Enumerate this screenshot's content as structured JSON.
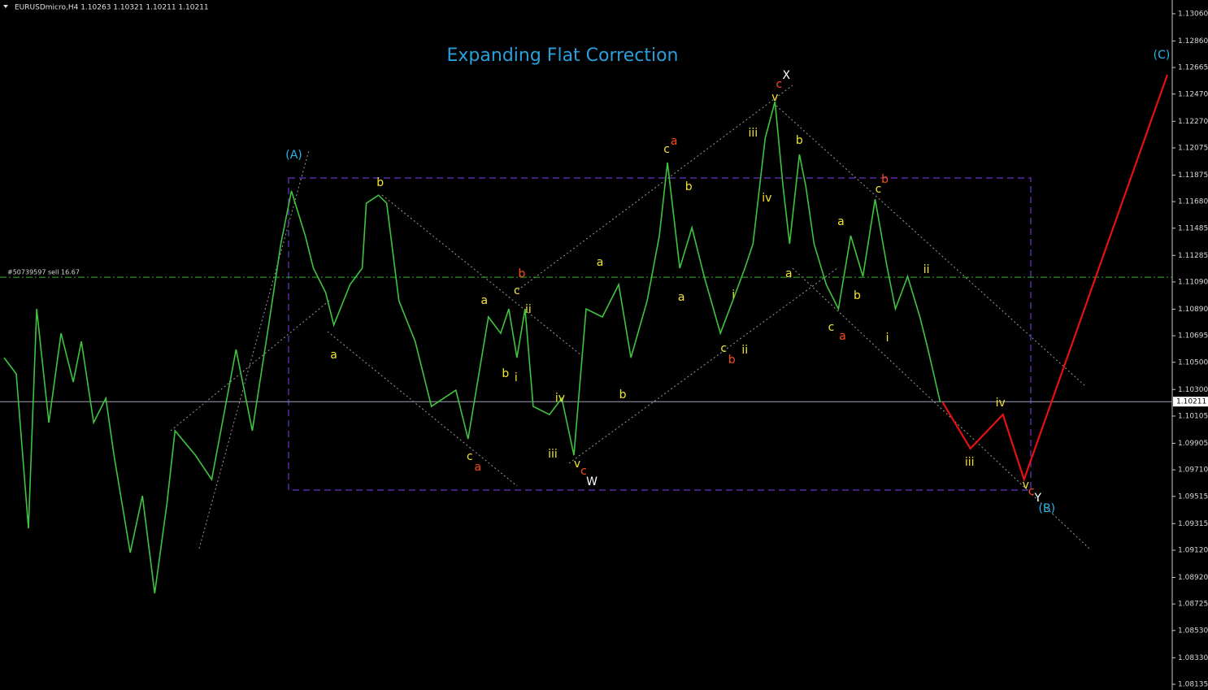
{
  "header": "EURUSDmicro,H4  1.10263 1.10321 1.10211 1.10211",
  "chart_data": {
    "type": "line",
    "title": "Expanding Flat Correction",
    "xlim": [
      0,
      288
    ],
    "ylim": [
      1.08093,
      1.13161
    ],
    "yticks": [
      {
        "value": 1.1306,
        "label": "1.13060"
      },
      {
        "value": 1.1286,
        "label": "1.12860"
      },
      {
        "value": 1.12665,
        "label": "1.12665"
      },
      {
        "value": 1.1247,
        "label": "1.12470"
      },
      {
        "value": 1.1227,
        "label": "1.12270"
      },
      {
        "value": 1.12075,
        "label": "1.12075"
      },
      {
        "value": 1.11875,
        "label": "1.11875"
      },
      {
        "value": 1.1168,
        "label": "1.11680"
      },
      {
        "value": 1.11485,
        "label": "1.11485"
      },
      {
        "value": 1.11285,
        "label": "1.11285"
      },
      {
        "value": 1.1109,
        "label": "1.11090"
      },
      {
        "value": 1.1089,
        "label": "1.10890"
      },
      {
        "value": 1.10695,
        "label": "1.10695"
      },
      {
        "value": 1.105,
        "label": "1.10500"
      },
      {
        "value": 1.103,
        "label": "1.10300"
      },
      {
        "value": 1.10105,
        "label": "1.10105"
      },
      {
        "value": 1.09905,
        "label": "1.09905"
      },
      {
        "value": 1.0971,
        "label": "1.09710"
      },
      {
        "value": 1.09515,
        "label": "1.09515"
      },
      {
        "value": 1.09315,
        "label": "1.09315"
      },
      {
        "value": 1.0912,
        "label": "1.09120"
      },
      {
        "value": 1.0892,
        "label": "1.08920"
      },
      {
        "value": 1.08725,
        "label": "1.08725"
      },
      {
        "value": 1.0853,
        "label": "1.08530"
      },
      {
        "value": 1.0833,
        "label": "1.08330"
      },
      {
        "value": 1.08135,
        "label": "1.08135"
      }
    ],
    "last_price": 1.10211,
    "order_line": {
      "label": "#50739597 sell 16.67",
      "price": 1.11125
    },
    "series": [
      {
        "color": "#3fc43f",
        "x": [
          1,
          4,
          7,
          9,
          12,
          15,
          18,
          20,
          23,
          26,
          28,
          32,
          35,
          38,
          41,
          43,
          48,
          52,
          58,
          62,
          66,
          69,
          71.6,
          75,
          77,
          80,
          82,
          86,
          89,
          90,
          93,
          95,
          98,
          102,
          106,
          112,
          115,
          120,
          123,
          125,
          127,
          129,
          131,
          135,
          138,
          141,
          144,
          148,
          152,
          155,
          159,
          162,
          164,
          167,
          170,
          173,
          177,
          180,
          183,
          185,
          188,
          190.4,
          192.4,
          194,
          196.4,
          198,
          200,
          203,
          206,
          209,
          212,
          215,
          218,
          220,
          223,
          226,
          228,
          231
        ],
        "values": [
          1.10534,
          1.10415,
          1.0928,
          1.10892,
          1.10057,
          1.10713,
          1.10355,
          1.10654,
          1.10057,
          1.10236,
          1.09818,
          1.09101,
          1.09519,
          1.08803,
          1.0946,
          1.09997,
          1.09818,
          1.09639,
          1.10594,
          1.09997,
          1.10773,
          1.1137,
          1.11758,
          1.1143,
          1.11191,
          1.11012,
          1.10773,
          1.11071,
          1.11191,
          1.11668,
          1.11728,
          1.11668,
          1.10952,
          1.10654,
          1.10176,
          1.10295,
          1.09937,
          1.10833,
          1.10713,
          1.10892,
          1.10534,
          1.10892,
          1.10176,
          1.10116,
          1.10236,
          1.09818,
          1.10892,
          1.10833,
          1.11071,
          1.10534,
          1.10952,
          1.1143,
          1.11967,
          1.11191,
          1.11489,
          1.11131,
          1.10713,
          1.10952,
          1.11191,
          1.1137,
          1.12146,
          1.12415,
          1.11788,
          1.1137,
          1.12027,
          1.11788,
          1.1137,
          1.11071,
          1.10892,
          1.1143,
          1.11131,
          1.11698,
          1.11191,
          1.10892,
          1.11131,
          1.10833,
          1.10594,
          1.10206
        ]
      },
      {
        "color": "#e81010",
        "x": [
          231.6,
          238.4,
          246.4,
          251.6,
          286.8
        ],
        "values": [
          1.10206,
          1.09866,
          1.10116,
          1.09639,
          1.12612
        ]
      }
    ],
    "annotations": [
      {
        "text": "(A)",
        "x": 72.2,
        "y": 1.12021,
        "color": "#29b6e6"
      },
      {
        "text": "b",
        "x": 93.4,
        "y": 1.11818,
        "color": "#f2e431"
      },
      {
        "text": "a",
        "x": 82,
        "y": 1.10552,
        "color": "#f2e431"
      },
      {
        "text": "c",
        "x": 115.4,
        "y": 1.09806,
        "color": "#f2e431"
      },
      {
        "text": "a",
        "x": 117.4,
        "y": 1.09728,
        "color": "#ff4a1a"
      },
      {
        "text": "a",
        "x": 119,
        "y": 1.10952,
        "color": "#f2e431"
      },
      {
        "text": "b",
        "x": 128.2,
        "y": 1.11149,
        "color": "#ff4a1a"
      },
      {
        "text": "c",
        "x": 127,
        "y": 1.11024,
        "color": "#f2e431"
      },
      {
        "text": "ii",
        "x": 129.8,
        "y": 1.10886,
        "color": "#f2e431"
      },
      {
        "text": "b",
        "x": 124.2,
        "y": 1.10415,
        "color": "#f2e431"
      },
      {
        "text": "i",
        "x": 126.8,
        "y": 1.10385,
        "color": "#f2e431"
      },
      {
        "text": "iv",
        "x": 137.6,
        "y": 1.10236,
        "color": "#f2e431"
      },
      {
        "text": "iii",
        "x": 135.8,
        "y": 1.09824,
        "color": "#f2e431"
      },
      {
        "text": "v",
        "x": 141.8,
        "y": 1.09752,
        "color": "#f2e431"
      },
      {
        "text": "c",
        "x": 143.4,
        "y": 1.09698,
        "color": "#ff4a1a"
      },
      {
        "text": "W",
        "x": 145.4,
        "y": 1.09621,
        "color": "#ffffff"
      },
      {
        "text": "a",
        "x": 147.4,
        "y": 1.11233,
        "color": "#f2e431"
      },
      {
        "text": "b",
        "x": 153,
        "y": 1.1026,
        "color": "#f2e431"
      },
      {
        "text": "c",
        "x": 163.8,
        "y": 1.12063,
        "color": "#f2e431"
      },
      {
        "text": "a",
        "x": 165.6,
        "y": 1.12122,
        "color": "#ff4a1a"
      },
      {
        "text": "b",
        "x": 169.2,
        "y": 1.11788,
        "color": "#f2e431"
      },
      {
        "text": "a",
        "x": 167.4,
        "y": 1.10976,
        "color": "#f2e431"
      },
      {
        "text": "i",
        "x": 180.2,
        "y": 1.10994,
        "color": "#f2e431"
      },
      {
        "text": "c",
        "x": 177.8,
        "y": 1.106,
        "color": "#f2e431"
      },
      {
        "text": "b",
        "x": 179.8,
        "y": 1.10516,
        "color": "#ff4a1a"
      },
      {
        "text": "ii",
        "x": 183,
        "y": 1.10588,
        "color": "#f2e431"
      },
      {
        "text": "iii",
        "x": 185,
        "y": 1.12182,
        "color": "#f2e431"
      },
      {
        "text": "iv",
        "x": 188.4,
        "y": 1.11704,
        "color": "#f2e431"
      },
      {
        "text": "v",
        "x": 190.4,
        "y": 1.12445,
        "color": "#f2e431"
      },
      {
        "text": "c",
        "x": 191.4,
        "y": 1.1254,
        "color": "#ff4a1a"
      },
      {
        "text": "X",
        "x": 193.2,
        "y": 1.12606,
        "color": "#ffffff"
      },
      {
        "text": "b",
        "x": 196.4,
        "y": 1.12128,
        "color": "#f2e431"
      },
      {
        "text": "a",
        "x": 193.8,
        "y": 1.11149,
        "color": "#f2e431"
      },
      {
        "text": "a",
        "x": 206.6,
        "y": 1.11531,
        "color": "#f2e431"
      },
      {
        "text": "b",
        "x": 210.6,
        "y": 1.10988,
        "color": "#f2e431"
      },
      {
        "text": "c",
        "x": 204.2,
        "y": 1.10755,
        "color": "#f2e431"
      },
      {
        "text": "a",
        "x": 207,
        "y": 1.10689,
        "color": "#ff4a1a"
      },
      {
        "text": "c",
        "x": 215.8,
        "y": 1.1177,
        "color": "#f2e431"
      },
      {
        "text": "b",
        "x": 217.4,
        "y": 1.11842,
        "color": "#ff4a1a"
      },
      {
        "text": "i",
        "x": 218,
        "y": 1.10677,
        "color": "#f2e431"
      },
      {
        "text": "ii",
        "x": 227.6,
        "y": 1.11179,
        "color": "#f2e431"
      },
      {
        "text": "iii",
        "x": 238.2,
        "y": 1.09764,
        "color": "#f2e431"
      },
      {
        "text": "iv",
        "x": 245.8,
        "y": 1.102,
        "color": "#f2e431"
      },
      {
        "text": "v",
        "x": 252,
        "y": 1.09597,
        "color": "#f2e431"
      },
      {
        "text": "c",
        "x": 253.4,
        "y": 1.09549,
        "color": "#ff4a1a"
      },
      {
        "text": "Y",
        "x": 255,
        "y": 1.09501,
        "color": "#ffffff"
      },
      {
        "text": "(B)",
        "x": 257.2,
        "y": 1.09424,
        "color": "#29b6e6"
      },
      {
        "text": "(C)",
        "x": 285.4,
        "y": 1.12755,
        "color": "#29b6e6"
      }
    ]
  }
}
